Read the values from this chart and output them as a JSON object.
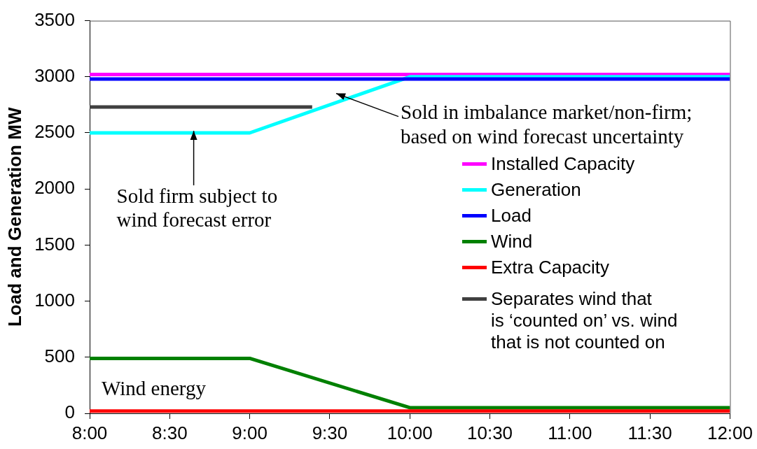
{
  "chart_data": {
    "type": "line",
    "ylabel": "Load and Generation MW",
    "xlim": [
      8,
      12
    ],
    "xticks": [
      {
        "value": 8,
        "label": "8:00"
      },
      {
        "value": 8.5,
        "label": "8:30"
      },
      {
        "value": 9,
        "label": "9:00"
      },
      {
        "value": 9.5,
        "label": "9:30"
      },
      {
        "value": 10,
        "label": "10:00"
      },
      {
        "value": 10.5,
        "label": "10:30"
      },
      {
        "value": 11,
        "label": "11:00"
      },
      {
        "value": 11.5,
        "label": "11:30"
      },
      {
        "value": 12,
        "label": "12:00"
      }
    ],
    "ylim": [
      0,
      3500
    ],
    "yticks": [
      0,
      500,
      1000,
      1500,
      2000,
      2500,
      3000,
      3500
    ],
    "series": [
      {
        "name": "Installed Capacity",
        "color": "#ff00ff",
        "x": [
          8,
          12
        ],
        "values": [
          3020,
          3020
        ]
      },
      {
        "name": "Generation",
        "color": "#00ffff",
        "x": [
          8,
          9,
          10,
          12
        ],
        "values": [
          2500,
          2500,
          3000,
          3000
        ]
      },
      {
        "name": "Load",
        "color": "#0000ff",
        "x": [
          8,
          12
        ],
        "values": [
          2980,
          2980
        ]
      },
      {
        "name": "Wind",
        "color": "#008000",
        "x": [
          8,
          9,
          10,
          12
        ],
        "values": [
          490,
          490,
          50,
          50
        ]
      },
      {
        "name": "Extra Capacity",
        "color": "#ff0000",
        "x": [
          8,
          12
        ],
        "values": [
          20,
          20
        ]
      },
      {
        "name": "Separates wind that\nis ‘counted on’ vs. wind\nthat is not counted on",
        "color": "#404040",
        "x": [
          8,
          9.39
        ],
        "values": [
          2730,
          2730
        ]
      }
    ],
    "annotations": [
      "Sold in imbalance market/non-firm;\nbased on wind forecast uncertainty",
      {
        "text": "Sold firm subject to\nwind forecast error",
        "x": 8.65,
        "y": 2500
      },
      "Wind energy"
    ],
    "legend": "right",
    "grid": false,
    "marker": "none"
  }
}
